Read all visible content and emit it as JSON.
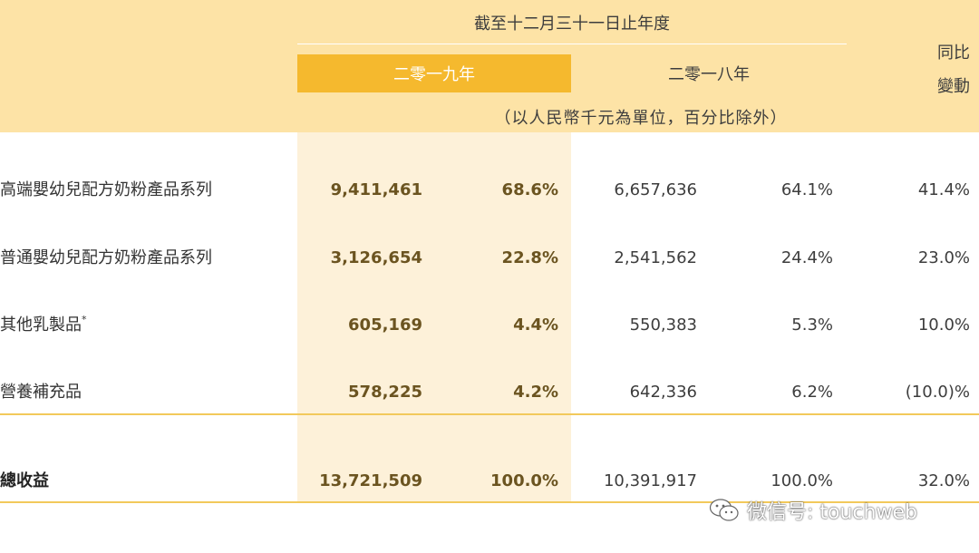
{
  "header": {
    "period": "截至十二月三十一日止年度",
    "year_2019": "二零一九年",
    "year_2018": "二零一八年",
    "yoy_line1": "同比",
    "yoy_line2": "變動",
    "unit_note": "（以人民幣千元為單位，百分比除外）"
  },
  "rows": [
    {
      "label": "高端嬰幼兒配方奶粉產品系列",
      "amount_2019": "9,411,461",
      "pct_2019": "68.6%",
      "amount_2018": "6,657,636",
      "pct_2018": "64.1%",
      "yoy": "41.4%"
    },
    {
      "label": "普通嬰幼兒配方奶粉產品系列",
      "amount_2019": "3,126,654",
      "pct_2019": "22.8%",
      "amount_2018": "2,541,562",
      "pct_2018": "24.4%",
      "yoy": "23.0%"
    },
    {
      "label": "其他乳製品",
      "label_mark": "*",
      "amount_2019": "605,169",
      "pct_2019": "4.4%",
      "amount_2018": "550,383",
      "pct_2018": "5.3%",
      "yoy": "10.0%"
    },
    {
      "label": "營養補充品",
      "amount_2019": "578,225",
      "pct_2019": "4.2%",
      "amount_2018": "642,336",
      "pct_2018": "6.2%",
      "yoy": "(10.0)%"
    }
  ],
  "total": {
    "label": "總收益",
    "amount_2019": "13,721,509",
    "pct_2019": "100.0%",
    "amount_2018": "10,391,917",
    "pct_2018": "100.0%",
    "yoy": "32.0%"
  },
  "watermark": {
    "text": "微信号: touchweb",
    "icon": "wechat-icon"
  },
  "colors": {
    "header_band": "#fde3a6",
    "highlight_2019": "#f5b92e",
    "column_2019_bg": "#fdf1d9",
    "rule": "#f2c95b",
    "bold_value": "#6b5420"
  }
}
